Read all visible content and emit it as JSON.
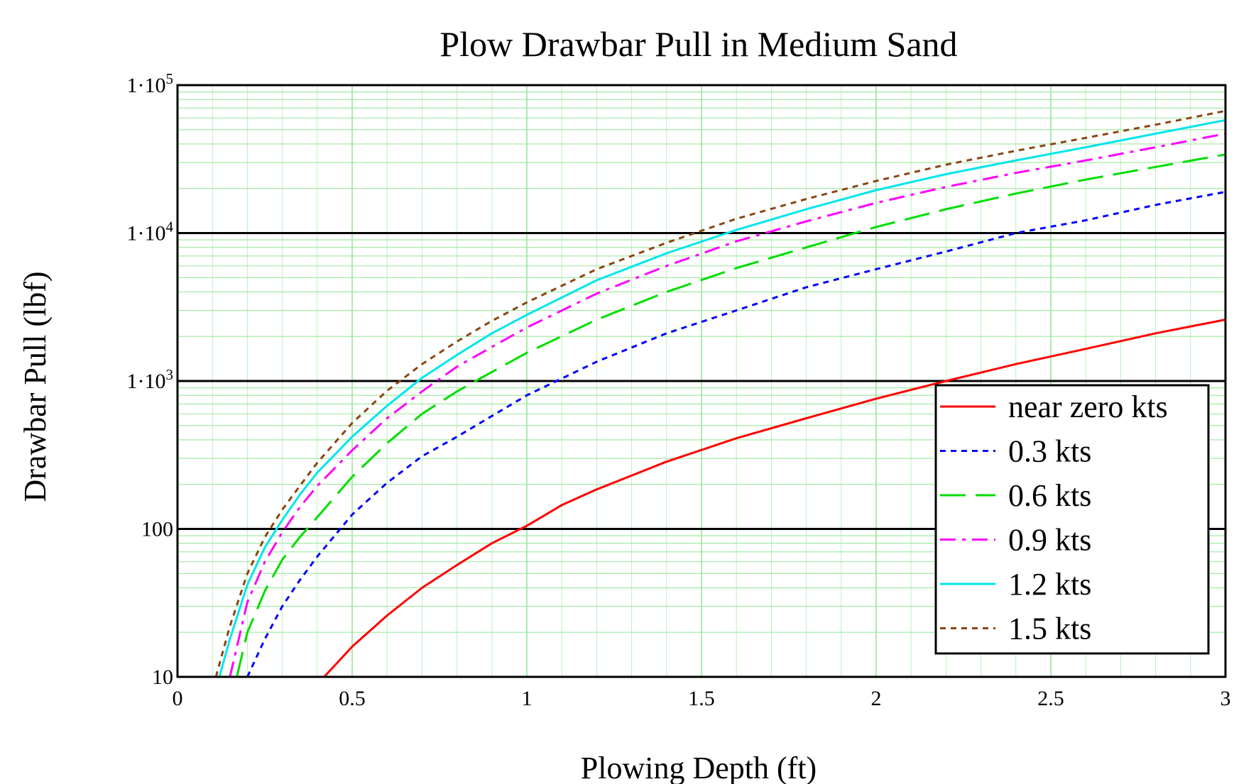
{
  "chart_data": {
    "type": "line",
    "title": "Plow Drawbar Pull in Medium Sand",
    "xlabel": "Plowing Depth (ft)",
    "ylabel": "Drawbar Pull (lbf)",
    "xlim": [
      0,
      3
    ],
    "ylim": [
      10,
      100000
    ],
    "yscale": "log",
    "grid": true,
    "legend_position": "bottom-right",
    "x_ticks": [
      {
        "value": 0,
        "label": "0"
      },
      {
        "value": 0.5,
        "label": "0.5"
      },
      {
        "value": 1,
        "label": "1"
      },
      {
        "value": 1.5,
        "label": "1.5"
      },
      {
        "value": 2,
        "label": "2"
      },
      {
        "value": 2.5,
        "label": "2.5"
      },
      {
        "value": 3,
        "label": "3"
      }
    ],
    "y_ticks": [
      {
        "value": 10,
        "label": "10",
        "sup": ""
      },
      {
        "value": 100,
        "label": "100",
        "sup": ""
      },
      {
        "value": 1000,
        "label": "1·10",
        "sup": "3"
      },
      {
        "value": 10000,
        "label": "1·10",
        "sup": "4"
      },
      {
        "value": 100000,
        "label": "1·10",
        "sup": "5"
      }
    ],
    "series": [
      {
        "name": "near zero kts",
        "color": "#ff0000",
        "dash": "solid",
        "strong_color": "",
        "x": [
          0.42,
          0.5,
          0.6,
          0.7,
          0.8,
          0.9,
          1.0,
          1.1,
          1.2,
          1.4,
          1.6,
          1.8,
          2.0,
          2.2,
          2.4,
          2.6,
          2.8,
          3.0
        ],
        "y": [
          10,
          16,
          26,
          40,
          57,
          80,
          105,
          145,
          185,
          285,
          410,
          560,
          760,
          1000,
          1300,
          1650,
          2100,
          2600
        ]
      },
      {
        "name": "0.3 kts",
        "color": "#0000ff",
        "dash": "short-dash",
        "strong_color": "",
        "x": [
          0.2,
          0.25,
          0.3,
          0.35,
          0.4,
          0.5,
          0.6,
          0.7,
          0.8,
          0.9,
          1.0,
          1.2,
          1.4,
          1.6,
          1.8,
          2.0,
          2.2,
          2.4,
          2.6,
          2.8,
          3.0
        ],
        "y": [
          10,
          18,
          30,
          45,
          65,
          125,
          205,
          310,
          420,
          580,
          800,
          1350,
          2100,
          3000,
          4300,
          5700,
          7500,
          10000,
          12200,
          15500,
          19000
        ]
      },
      {
        "name": "0.6 kts",
        "color": "#00ff00",
        "dash": "long-dash",
        "strong_color": "#00dd00",
        "x": [
          0.17,
          0.2,
          0.25,
          0.3,
          0.35,
          0.4,
          0.5,
          0.6,
          0.7,
          0.8,
          0.9,
          1.0,
          1.2,
          1.4,
          1.6,
          1.8,
          2.0,
          2.2,
          2.4,
          2.6,
          2.8,
          3.0
        ],
        "y": [
          10,
          20,
          38,
          62,
          88,
          120,
          225,
          380,
          600,
          850,
          1150,
          1550,
          2600,
          4000,
          5800,
          8000,
          11000,
          14500,
          18500,
          23000,
          28000,
          34000
        ]
      },
      {
        "name": "0.9 kts",
        "color": "#ff00ff",
        "dash": "dash-dot",
        "strong_color": "",
        "x": [
          0.15,
          0.2,
          0.25,
          0.3,
          0.35,
          0.4,
          0.5,
          0.6,
          0.7,
          0.8,
          0.9,
          1.0,
          1.2,
          1.4,
          1.6,
          1.8,
          2.0,
          2.2,
          2.4,
          2.6,
          2.8,
          3.0
        ],
        "y": [
          10,
          32,
          60,
          95,
          140,
          195,
          340,
          560,
          850,
          1250,
          1700,
          2300,
          3900,
          6000,
          8800,
          12000,
          16000,
          20500,
          25500,
          31000,
          38000,
          47000
        ]
      },
      {
        "name": "1.2 kts",
        "color": "#00ffff",
        "dash": "solid",
        "strong_color": "#00e5ee",
        "x": [
          0.12,
          0.15,
          0.2,
          0.25,
          0.3,
          0.35,
          0.4,
          0.5,
          0.6,
          0.7,
          0.8,
          0.9,
          1.0,
          1.2,
          1.4,
          1.6,
          1.8,
          2.0,
          2.2,
          2.4,
          2.6,
          2.8,
          3.0
        ],
        "y": [
          10,
          18,
          42,
          75,
          115,
          170,
          240,
          420,
          680,
          1050,
          1500,
          2100,
          2800,
          4800,
          7300,
          10500,
          14500,
          19500,
          25000,
          31000,
          38000,
          47000,
          58000
        ]
      },
      {
        "name": "1.5 kts",
        "color": "#8b4513",
        "dash": "short-dash",
        "strong_color": "",
        "x": [
          0.11,
          0.15,
          0.2,
          0.25,
          0.3,
          0.35,
          0.4,
          0.5,
          0.6,
          0.7,
          0.8,
          0.9,
          1.0,
          1.2,
          1.4,
          1.6,
          1.8,
          2.0,
          2.2,
          2.4,
          2.6,
          2.8,
          3.0
        ],
        "y": [
          10,
          22,
          50,
          88,
          135,
          195,
          280,
          520,
          860,
          1300,
          1850,
          2550,
          3400,
          5700,
          8600,
          12500,
          17000,
          22500,
          29000,
          36000,
          44000,
          54000,
          67000
        ]
      }
    ]
  }
}
